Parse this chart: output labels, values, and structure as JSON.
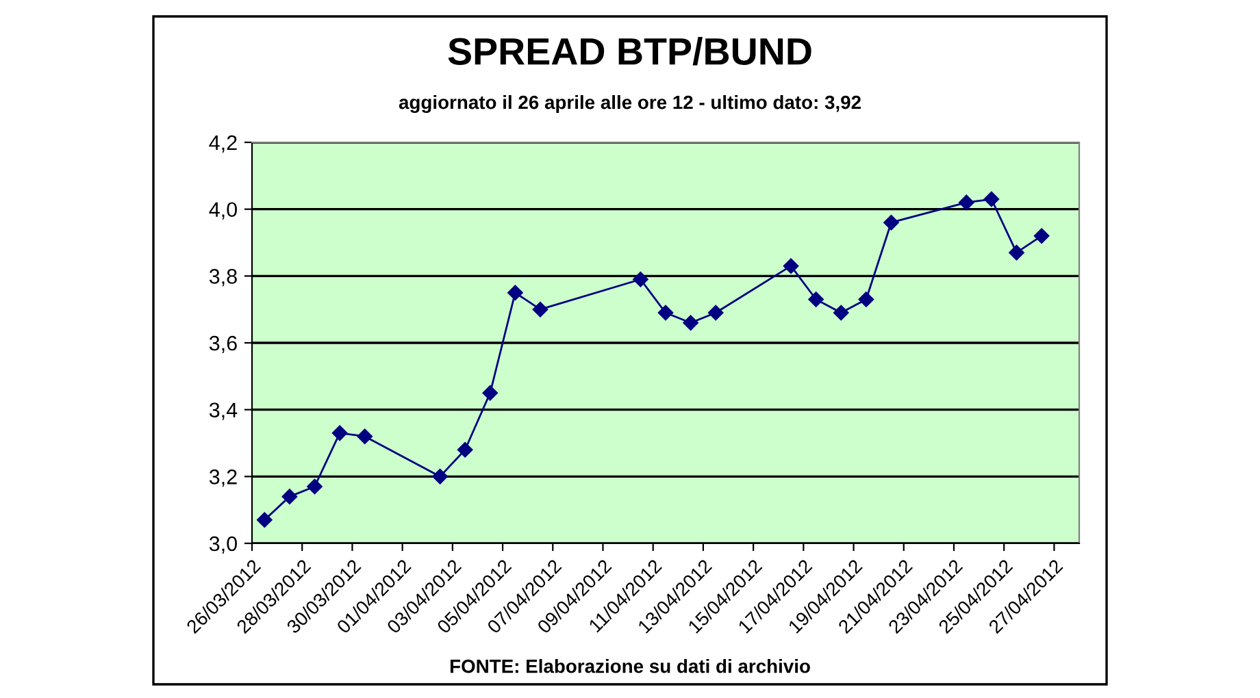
{
  "chart_data": {
    "type": "line",
    "title": "SPREAD BTP/BUND",
    "subtitle": "aggiornato il 26 aprile alle ore 12 - ultimo dato: 3,92",
    "annotations": [
      "FONTE: Elaborazione su dati di archivio"
    ],
    "x": [
      "2012-03-26T12:00",
      "2012-03-27T12:00",
      "2012-03-28T12:00",
      "2012-03-29T12:00",
      "2012-03-30T12:00",
      "2012-04-02T12:00",
      "2012-04-03T12:00",
      "2012-04-04T12:00",
      "2012-04-05T12:00",
      "2012-04-06T12:00",
      "2012-04-10T12:00",
      "2012-04-11T12:00",
      "2012-04-12T12:00",
      "2012-04-13T12:00",
      "2012-04-16T12:00",
      "2012-04-17T12:00",
      "2012-04-18T12:00",
      "2012-04-19T12:00",
      "2012-04-20T12:00",
      "2012-04-23T12:00",
      "2012-04-24T12:00",
      "2012-04-25T12:00",
      "2012-04-26T12:00"
    ],
    "series": [
      {
        "color": "#000080",
        "values": [
          3.07,
          3.14,
          3.17,
          3.33,
          3.32,
          3.2,
          3.28,
          3.45,
          3.75,
          3.7,
          3.79,
          3.69,
          3.66,
          3.69,
          3.83,
          3.73,
          3.69,
          3.73,
          3.96,
          4.02,
          4.03,
          3.87,
          3.92
        ]
      }
    ],
    "xlim": [
      "2012-03-26",
      "2012-04-28"
    ],
    "xticks": [
      {
        "value": "2012-03-26",
        "label": "26/03/2012"
      },
      {
        "value": "2012-03-28",
        "label": "28/03/2012"
      },
      {
        "value": "2012-03-30",
        "label": "30/03/2012"
      },
      {
        "value": "2012-04-01",
        "label": "01/04/2012"
      },
      {
        "value": "2012-04-03",
        "label": "03/04/2012"
      },
      {
        "value": "2012-04-05",
        "label": "05/04/2012"
      },
      {
        "value": "2012-04-07",
        "label": "07/04/2012"
      },
      {
        "value": "2012-04-09",
        "label": "09/04/2012"
      },
      {
        "value": "2012-04-11",
        "label": "11/04/2012"
      },
      {
        "value": "2012-04-13",
        "label": "13/04/2012"
      },
      {
        "value": "2012-04-15",
        "label": "15/04/2012"
      },
      {
        "value": "2012-04-17",
        "label": "17/04/2012"
      },
      {
        "value": "2012-04-19",
        "label": "19/04/2012"
      },
      {
        "value": "2012-04-21",
        "label": "21/04/2012"
      },
      {
        "value": "2012-04-23",
        "label": "23/04/2012"
      },
      {
        "value": "2012-04-25",
        "label": "25/04/2012"
      },
      {
        "value": "2012-04-27",
        "label": "27/04/2012"
      }
    ],
    "ylim": [
      3.0,
      4.2
    ],
    "yticks": [
      {
        "value": 3.0,
        "label": "3,0"
      },
      {
        "value": 3.2,
        "label": "3,2"
      },
      {
        "value": 3.4,
        "label": "3,4"
      },
      {
        "value": 3.6,
        "label": "3,6"
      },
      {
        "value": 3.8,
        "label": "3,8"
      },
      {
        "value": 4.0,
        "label": "4,0"
      },
      {
        "value": 4.2,
        "label": "4,2"
      }
    ],
    "grid": "y",
    "marker": "diamond",
    "line_style": "solid"
  }
}
